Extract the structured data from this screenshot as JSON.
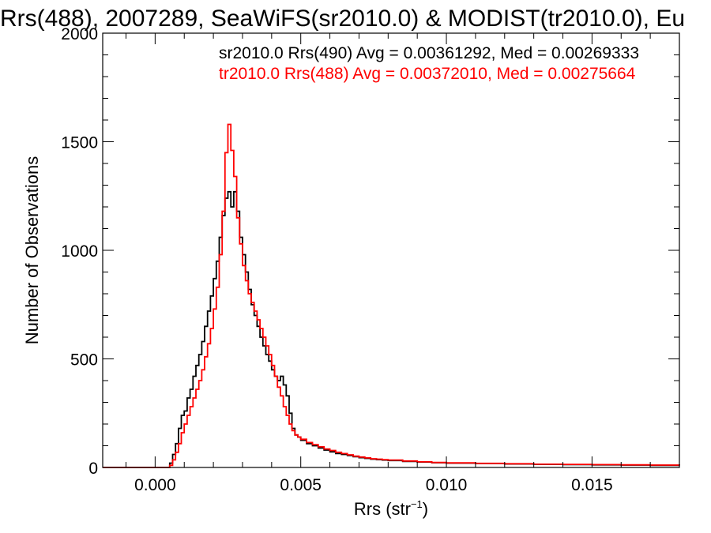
{
  "chart_data": {
    "type": "line",
    "title": "Rrs(488), 2007289, SeaWiFS(sr2010.0) & MODIST(tr2010.0), Eu",
    "xlabel_base": "Rrs (str",
    "xlabel_sup": "−1",
    "xlabel_end": ")",
    "ylabel": "Number of Observations",
    "xlim": [
      -0.0018,
      0.018
    ],
    "ylim": [
      0,
      2000
    ],
    "x_ticks": [
      "0.000",
      "0.005",
      "0.010",
      "0.015"
    ],
    "x_tick_values": [
      0.0,
      0.005,
      0.01,
      0.015
    ],
    "y_ticks": [
      "0",
      "500",
      "1000",
      "1500",
      "2000"
    ],
    "y_tick_values": [
      0,
      500,
      1000,
      1500,
      2000
    ],
    "grid": false,
    "legend_position": "top-right",
    "series": [
      {
        "name": "sr2010.0 Rrs(490) Avg = 0.00361292, Med = 0.00269333",
        "color": "#000000",
        "points": [
          [
            -0.0018,
            0
          ],
          [
            0.0004,
            0
          ],
          [
            0.0005,
            20
          ],
          [
            0.0006,
            60
          ],
          [
            0.0007,
            110
          ],
          [
            0.0008,
            180
          ],
          [
            0.0009,
            240
          ],
          [
            0.001,
            260
          ],
          [
            0.0011,
            320
          ],
          [
            0.0012,
            360
          ],
          [
            0.0013,
            420
          ],
          [
            0.0014,
            470
          ],
          [
            0.0015,
            520
          ],
          [
            0.0016,
            580
          ],
          [
            0.0017,
            650
          ],
          [
            0.0018,
            720
          ],
          [
            0.0019,
            790
          ],
          [
            0.002,
            870
          ],
          [
            0.0021,
            950
          ],
          [
            0.0022,
            1060
          ],
          [
            0.0023,
            1160
          ],
          [
            0.0024,
            1240
          ],
          [
            0.0025,
            1270
          ],
          [
            0.0026,
            1200
          ],
          [
            0.0027,
            1270
          ],
          [
            0.0028,
            1180
          ],
          [
            0.0029,
            1060
          ],
          [
            0.003,
            980
          ],
          [
            0.0031,
            900
          ],
          [
            0.0032,
            820
          ],
          [
            0.0033,
            750
          ],
          [
            0.0034,
            700
          ],
          [
            0.0035,
            650
          ],
          [
            0.0036,
            600
          ],
          [
            0.0037,
            560
          ],
          [
            0.0038,
            520
          ],
          [
            0.0039,
            490
          ],
          [
            0.004,
            450
          ],
          [
            0.0041,
            420
          ],
          [
            0.0042,
            400
          ],
          [
            0.0043,
            420
          ],
          [
            0.0044,
            380
          ],
          [
            0.0045,
            330
          ],
          [
            0.0046,
            250
          ],
          [
            0.0047,
            180
          ],
          [
            0.0048,
            150
          ],
          [
            0.0049,
            140
          ],
          [
            0.005,
            125
          ],
          [
            0.0052,
            110
          ],
          [
            0.0054,
            100
          ],
          [
            0.0056,
            90
          ],
          [
            0.0058,
            80
          ],
          [
            0.006,
            72
          ],
          [
            0.0062,
            64
          ],
          [
            0.0064,
            60
          ],
          [
            0.0066,
            55
          ],
          [
            0.0068,
            50
          ],
          [
            0.007,
            45
          ],
          [
            0.0072,
            42
          ],
          [
            0.0074,
            38
          ],
          [
            0.0076,
            36
          ],
          [
            0.0078,
            34
          ],
          [
            0.008,
            32
          ],
          [
            0.0085,
            28
          ],
          [
            0.009,
            25
          ],
          [
            0.0095,
            22
          ],
          [
            0.01,
            20
          ],
          [
            0.011,
            18
          ],
          [
            0.012,
            16
          ],
          [
            0.013,
            14
          ],
          [
            0.014,
            13
          ],
          [
            0.015,
            12
          ],
          [
            0.016,
            11
          ],
          [
            0.017,
            10
          ],
          [
            0.018,
            9
          ]
        ]
      },
      {
        "name": "tr2010.0 Rrs(488) Avg = 0.00372010, Med = 0.00275664",
        "color": "#ff0000",
        "points": [
          [
            -0.0018,
            0
          ],
          [
            0.0004,
            0
          ],
          [
            0.0005,
            10
          ],
          [
            0.0006,
            35
          ],
          [
            0.0007,
            70
          ],
          [
            0.0008,
            110
          ],
          [
            0.0009,
            160
          ],
          [
            0.001,
            200
          ],
          [
            0.0011,
            240
          ],
          [
            0.0012,
            280
          ],
          [
            0.0013,
            320
          ],
          [
            0.0014,
            360
          ],
          [
            0.0015,
            400
          ],
          [
            0.0016,
            450
          ],
          [
            0.0017,
            510
          ],
          [
            0.0018,
            570
          ],
          [
            0.0019,
            640
          ],
          [
            0.002,
            730
          ],
          [
            0.0021,
            830
          ],
          [
            0.0022,
            980
          ],
          [
            0.0023,
            1180
          ],
          [
            0.0024,
            1450
          ],
          [
            0.0025,
            1580
          ],
          [
            0.0026,
            1460
          ],
          [
            0.0027,
            1340
          ],
          [
            0.0028,
            1150
          ],
          [
            0.0029,
            1030
          ],
          [
            0.003,
            930
          ],
          [
            0.0031,
            860
          ],
          [
            0.0032,
            800
          ],
          [
            0.0033,
            760
          ],
          [
            0.0034,
            720
          ],
          [
            0.0035,
            680
          ],
          [
            0.0036,
            640
          ],
          [
            0.0037,
            600
          ],
          [
            0.0038,
            560
          ],
          [
            0.0039,
            520
          ],
          [
            0.004,
            470
          ],
          [
            0.0041,
            420
          ],
          [
            0.0042,
            370
          ],
          [
            0.0043,
            330
          ],
          [
            0.0044,
            280
          ],
          [
            0.0045,
            240
          ],
          [
            0.0046,
            200
          ],
          [
            0.0047,
            170
          ],
          [
            0.0048,
            150
          ],
          [
            0.0049,
            140
          ],
          [
            0.005,
            130
          ],
          [
            0.0052,
            115
          ],
          [
            0.0054,
            105
          ],
          [
            0.0056,
            95
          ],
          [
            0.0058,
            85
          ],
          [
            0.006,
            78
          ],
          [
            0.0062,
            70
          ],
          [
            0.0064,
            64
          ],
          [
            0.0066,
            58
          ],
          [
            0.0068,
            52
          ],
          [
            0.007,
            48
          ],
          [
            0.0072,
            44
          ],
          [
            0.0074,
            40
          ],
          [
            0.0076,
            38
          ],
          [
            0.0078,
            36
          ],
          [
            0.008,
            34
          ],
          [
            0.0085,
            30
          ],
          [
            0.009,
            26
          ],
          [
            0.0095,
            23
          ],
          [
            0.01,
            21
          ],
          [
            0.011,
            19
          ],
          [
            0.012,
            17
          ],
          [
            0.013,
            15
          ],
          [
            0.014,
            14
          ],
          [
            0.015,
            13
          ],
          [
            0.016,
            12
          ],
          [
            0.017,
            11
          ],
          [
            0.018,
            10
          ]
        ]
      }
    ]
  }
}
